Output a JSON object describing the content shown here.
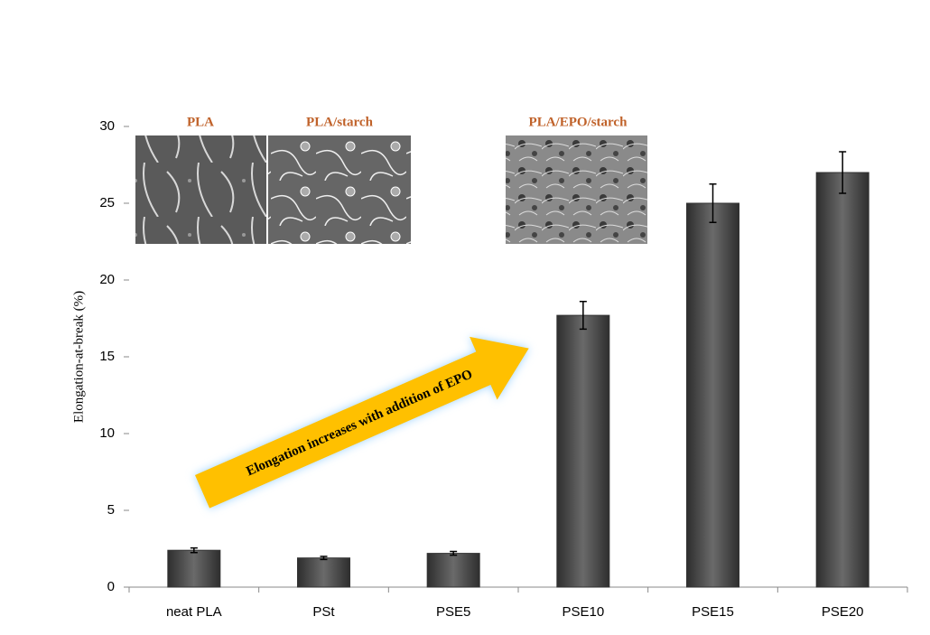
{
  "chart_data": {
    "type": "bar",
    "y_label": "Elongation-at-break (%)",
    "categories": [
      "neat PLA",
      "PSt",
      "PSE5",
      "PSE10",
      "PSE15",
      "PSE20"
    ],
    "values": [
      2.4,
      1.9,
      2.2,
      17.7,
      25.0,
      27.0
    ],
    "errors": [
      0.15,
      0.1,
      0.12,
      0.9,
      1.25,
      1.35
    ],
    "color": "#555555",
    "ylim": [
      0,
      30
    ],
    "yticks": [
      0,
      5,
      10,
      15,
      20,
      25,
      30
    ],
    "image_labels": [
      "PLA",
      "PLA/starch",
      "PLA/EPO/starch"
    ],
    "arrow_text": "Elongation increases with addition of EPO"
  }
}
